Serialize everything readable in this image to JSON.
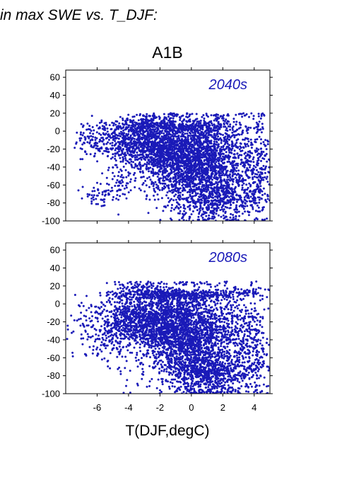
{
  "heading": "in max SWE vs. T_DJF:",
  "scenario": "A1B",
  "xlabel": "T(DJF,degC)",
  "colors": {
    "points": "#1a1ab8",
    "period_label": "#1a1ab8"
  },
  "chart_data": [
    {
      "type": "scatter",
      "period_label": "2040s",
      "xlim": [
        -8,
        5
      ],
      "ylim": [
        -100,
        68
      ],
      "yticks": [
        -100,
        -80,
        -60,
        -40,
        -20,
        0,
        20,
        40,
        60
      ],
      "xticks": [
        -6,
        -4,
        -2,
        0,
        2,
        4
      ],
      "show_x_tick_labels": false,
      "clusters": [
        {
          "cx": 0.5,
          "cy": -30,
          "sx": 1.6,
          "sy": 22,
          "n": 1900
        },
        {
          "cx": -2.0,
          "cy": -20,
          "sx": 1.3,
          "sy": 17,
          "n": 900
        },
        {
          "cx": -4.0,
          "cy": -12,
          "sx": 1.0,
          "sy": 12,
          "n": 380
        },
        {
          "cx": -6.2,
          "cy": -12,
          "sx": 0.7,
          "sy": 10,
          "n": 90
        },
        {
          "cx": -5.8,
          "cy": -72,
          "sx": 0.5,
          "sy": 5,
          "n": 50
        },
        {
          "cx": -4.5,
          "cy": -60,
          "sx": 0.6,
          "sy": 10,
          "n": 50
        },
        {
          "cx": 1.5,
          "cy": -75,
          "sx": 1.6,
          "sy": 13,
          "n": 650
        },
        {
          "cx": 4.2,
          "cy": -40,
          "sx": 0.6,
          "sy": 30,
          "n": 260
        },
        {
          "cx": -1.0,
          "cy": 5,
          "sx": 2.2,
          "sy": 3,
          "n": 350
        },
        {
          "cx": -3.0,
          "cy": 12,
          "sx": 0.8,
          "sy": 4,
          "n": 70
        },
        {
          "cx": 2.0,
          "cy": 12,
          "sx": 0.5,
          "sy": 4,
          "n": 30
        }
      ],
      "x_clip": [
        -7.5,
        5
      ],
      "y_clip": [
        -100,
        20
      ]
    },
    {
      "type": "scatter",
      "period_label": "2080s",
      "xlim": [
        -8,
        5
      ],
      "ylim": [
        -100,
        68
      ],
      "yticks": [
        -100,
        -80,
        -60,
        -40,
        -20,
        0,
        20,
        40,
        60
      ],
      "xticks": [
        -6,
        -4,
        -2,
        0,
        2,
        4
      ],
      "show_x_tick_labels": true,
      "clusters": [
        {
          "cx": 0.2,
          "cy": -35,
          "sx": 1.7,
          "sy": 26,
          "n": 2000
        },
        {
          "cx": -2.0,
          "cy": -20,
          "sx": 1.3,
          "sy": 18,
          "n": 950
        },
        {
          "cx": -4.0,
          "cy": -15,
          "sx": 1.0,
          "sy": 14,
          "n": 400
        },
        {
          "cx": -5.5,
          "cy": -40,
          "sx": 0.8,
          "sy": 15,
          "n": 120
        },
        {
          "cx": -6.6,
          "cy": -15,
          "sx": 0.5,
          "sy": 10,
          "n": 40
        },
        {
          "cx": 1.2,
          "cy": -80,
          "sx": 1.5,
          "sy": 12,
          "n": 650
        },
        {
          "cx": 4.0,
          "cy": -45,
          "sx": 0.7,
          "sy": 30,
          "n": 250
        },
        {
          "cx": -1.0,
          "cy": 10,
          "sx": 2.0,
          "sy": 3,
          "n": 380
        },
        {
          "cx": -3.2,
          "cy": 18,
          "sx": 0.8,
          "sy": 4,
          "n": 60
        },
        {
          "cx": 3.5,
          "cy": 13,
          "sx": 0.8,
          "sy": 2,
          "n": 40
        },
        {
          "cx": -8.0,
          "cy": -30,
          "sx": 0.3,
          "sy": 3,
          "n": 6
        }
      ],
      "x_clip": [
        -8,
        5
      ],
      "y_clip": [
        -100,
        25
      ]
    }
  ]
}
